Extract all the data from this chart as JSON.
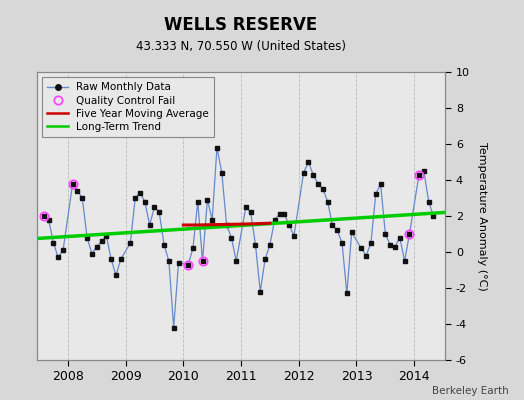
{
  "title": "WELLS RESERVE",
  "subtitle": "43.333 N, 70.550 W (United States)",
  "ylabel": "Temperature Anomaly (°C)",
  "watermark": "Berkeley Earth",
  "bg_color": "#d8d8d8",
  "plot_bg_color": "#e8e8e8",
  "ylim": [
    -6,
    10
  ],
  "yticks": [
    -6,
    -4,
    -2,
    0,
    2,
    4,
    6,
    8,
    10
  ],
  "xlim": [
    2007.46,
    2014.54
  ],
  "xtick_positions": [
    2008,
    2009,
    2010,
    2011,
    2012,
    2013,
    2014
  ],
  "xtick_labels": [
    "2008",
    "2009",
    "2010",
    "2011",
    "2012",
    "2013",
    "2014"
  ],
  "raw_x": [
    2007.583,
    2007.667,
    2007.75,
    2007.833,
    2007.917,
    2008.083,
    2008.167,
    2008.25,
    2008.333,
    2008.417,
    2008.5,
    2008.583,
    2008.667,
    2008.75,
    2008.833,
    2008.917,
    2009.083,
    2009.167,
    2009.25,
    2009.333,
    2009.417,
    2009.5,
    2009.583,
    2009.667,
    2009.75,
    2009.833,
    2009.917,
    2010.083,
    2010.167,
    2010.25,
    2010.333,
    2010.417,
    2010.5,
    2010.583,
    2010.667,
    2010.75,
    2010.833,
    2010.917,
    2011.083,
    2011.167,
    2011.25,
    2011.333,
    2011.417,
    2011.5,
    2011.583,
    2011.667,
    2011.75,
    2011.833,
    2011.917,
    2012.083,
    2012.167,
    2012.25,
    2012.333,
    2012.417,
    2012.5,
    2012.583,
    2012.667,
    2012.75,
    2012.833,
    2012.917,
    2013.083,
    2013.167,
    2013.25,
    2013.333,
    2013.417,
    2013.5,
    2013.583,
    2013.667,
    2013.75,
    2013.833,
    2013.917,
    2014.083,
    2014.167,
    2014.25,
    2014.333
  ],
  "raw_y": [
    2.0,
    1.8,
    0.5,
    -0.3,
    0.1,
    3.8,
    3.4,
    3.0,
    0.8,
    -0.1,
    0.3,
    0.6,
    0.9,
    -0.4,
    -1.3,
    -0.4,
    0.5,
    3.0,
    3.3,
    2.8,
    1.5,
    2.5,
    2.2,
    0.4,
    -0.5,
    -4.2,
    -0.6,
    -0.7,
    0.2,
    2.8,
    -0.5,
    2.9,
    1.8,
    5.8,
    4.4,
    1.5,
    0.8,
    -0.5,
    2.5,
    2.2,
    0.4,
    -2.2,
    -0.4,
    0.4,
    1.8,
    2.1,
    2.1,
    1.5,
    0.9,
    4.4,
    5.0,
    4.3,
    3.8,
    3.5,
    2.8,
    1.5,
    1.2,
    0.5,
    -2.3,
    1.1,
    0.2,
    -0.2,
    0.5,
    3.2,
    3.8,
    1.0,
    0.4,
    0.3,
    0.8,
    -0.5,
    1.0,
    4.3,
    4.5,
    2.8,
    2.0
  ],
  "qc_fail_x": [
    2007.583,
    2008.083,
    2010.083,
    2010.333,
    2013.917,
    2014.083
  ],
  "qc_fail_y": [
    2.0,
    3.8,
    -0.7,
    -0.5,
    1.0,
    4.3
  ],
  "moving_avg_x": [
    2010.0,
    2010.25,
    2010.5,
    2010.75,
    2011.0,
    2011.25,
    2011.5
  ],
  "moving_avg_y": [
    1.5,
    1.5,
    1.52,
    1.53,
    1.55,
    1.57,
    1.6
  ],
  "trend_x": [
    2007.46,
    2014.54
  ],
  "trend_y": [
    0.75,
    2.2
  ],
  "line_color": "#6688cc",
  "dot_color": "#111111",
  "qc_color": "#ff44ff",
  "moving_avg_color": "#cc0000",
  "trend_color": "#00cc00",
  "grid_color": "#bbbbbb",
  "legend_labels": [
    "Raw Monthly Data",
    "Quality Control Fail",
    "Five Year Moving Average",
    "Long-Term Trend"
  ]
}
